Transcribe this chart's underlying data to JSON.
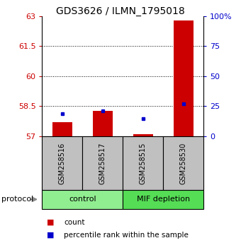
{
  "title": "GDS3626 / ILMN_1795018",
  "samples": [
    "GSM258516",
    "GSM258517",
    "GSM258515",
    "GSM258530"
  ],
  "groups": [
    "control",
    "control",
    "MIF depletion",
    "MIF depletion"
  ],
  "group_labels": [
    "control",
    "MIF depletion"
  ],
  "group_colors": [
    "#90EE90",
    "#55DD55"
  ],
  "red_values": [
    57.72,
    58.28,
    57.12,
    62.78
  ],
  "blue_values": [
    58.12,
    58.27,
    57.88,
    58.62
  ],
  "ymin": 57,
  "ymax": 63,
  "yticks_left": [
    57,
    58.5,
    60,
    61.5,
    63
  ],
  "yticks_right": [
    0,
    25,
    50,
    75,
    100
  ],
  "ylabel_left_color": "#CC0000",
  "ylabel_right_color": "#0000CC",
  "bar_color": "#CC0000",
  "dot_color": "#0000CC",
  "sample_box_color": "#C0C0C0",
  "bar_width": 0.5,
  "legend_items": [
    "count",
    "percentile rank within the sample"
  ],
  "figsize": [
    3.4,
    3.54
  ],
  "dpi": 100
}
